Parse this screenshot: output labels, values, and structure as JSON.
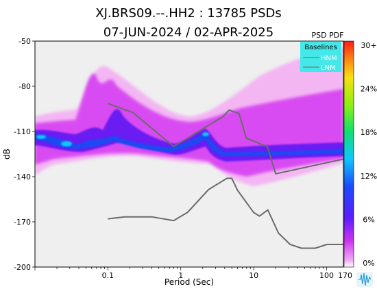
{
  "chart_data": {
    "type": "heatmap",
    "title": "XJ.BRS09.--.HH2 : 13785 PSDs",
    "subtitle": "07-JUN-2024 / 02-APR-2025",
    "xlabel": "Period (Sec)",
    "ylabel": "dB",
    "x_scale": "log",
    "xlim": [
      0.01,
      170
    ],
    "ylim": [
      -200,
      -50
    ],
    "x_ticks": [
      {
        "value": 0.1,
        "label": "0.1"
      },
      {
        "value": 1,
        "label": "1"
      },
      {
        "value": 10,
        "label": "10"
      },
      {
        "value": 100,
        "label": "100"
      },
      {
        "value": 170,
        "label": "170"
      }
    ],
    "y_ticks": [
      {
        "value": -50,
        "label": "-50"
      },
      {
        "value": -80,
        "label": "-80"
      },
      {
        "value": -110,
        "label": "-110"
      },
      {
        "value": -140,
        "label": "-140"
      },
      {
        "value": -170,
        "label": "-170"
      },
      {
        "value": -200,
        "label": "-200"
      }
    ],
    "colorbar": {
      "title": "PSD PDF",
      "ticks": [
        "30+",
        "24%",
        "18%",
        "12%",
        "6%",
        "0%"
      ]
    },
    "legend": {
      "title": "Baselines",
      "entries": [
        "HNM",
        "LNM"
      ],
      "placement": "top-right",
      "background": "#44e8e8"
    },
    "series": [
      {
        "name": "HNM",
        "x": [
          0.1,
          0.22,
          0.8,
          3.8,
          4.6,
          6.3,
          7.9,
          15.4,
          20,
          354.8
        ],
        "y": [
          -91.5,
          -97.4,
          -120,
          -100.1,
          -95.8,
          -98.1,
          -114.4,
          -120.1,
          -138.1,
          -125
        ]
      },
      {
        "name": "LNM",
        "x": [
          0.1,
          0.17,
          0.4,
          0.8,
          1.24,
          2.4,
          4.3,
          5,
          6,
          10,
          12,
          15.6,
          21.9,
          31.6,
          45,
          70,
          101,
          154,
          328.6
        ],
        "y": [
          -168,
          -166.7,
          -166.7,
          -169.2,
          -163.7,
          -148.6,
          -141.1,
          -141.1,
          -149,
          -163.8,
          -166.2,
          -162.1,
          -177.5,
          -185,
          -187.5,
          -187.5,
          -185,
          -185,
          -184.4
        ]
      }
    ],
    "colors": {
      "hnm_line": "#6a6a6a",
      "lnm_line": "#6a6a6a",
      "plot_background": "#efefef"
    },
    "density_ridge": {
      "description_values_only": "mode of PDF in dB",
      "x": [
        0.01,
        0.02,
        0.04,
        0.06,
        0.08,
        0.1,
        0.15,
        0.25,
        0.5,
        0.8,
        1.2,
        2,
        3,
        5,
        8,
        12,
        20,
        40,
        80,
        170
      ],
      "y": [
        -112,
        -116,
        -115,
        -114,
        -118,
        -100,
        -108,
        -114,
        -118,
        -122,
        -118,
        -113,
        -128,
        -122,
        -120,
        -121,
        -121,
        -121,
        -120,
        -119
      ]
    }
  }
}
